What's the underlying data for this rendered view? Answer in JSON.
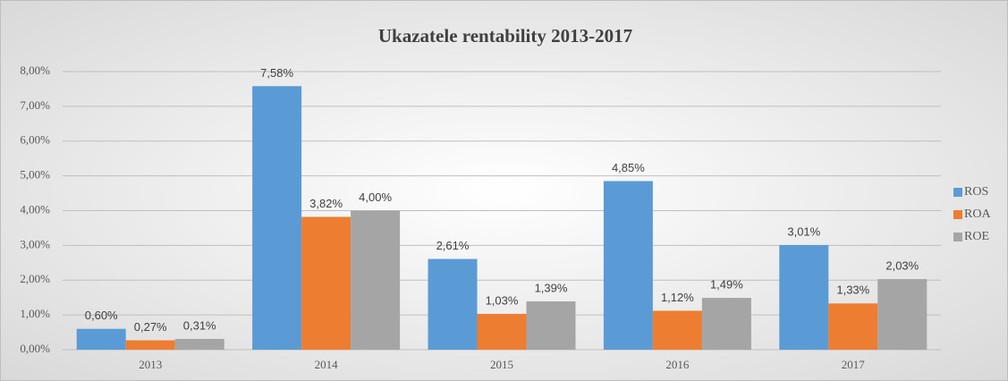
{
  "chart_data": {
    "type": "bar",
    "title": "Ukazatele rentability 2013-2017",
    "categories": [
      "2013",
      "2014",
      "2015",
      "2016",
      "2017"
    ],
    "series": [
      {
        "name": "ROS",
        "color": "#5b9bd5",
        "values": [
          0.6,
          7.58,
          2.61,
          4.85,
          3.01
        ],
        "value_labels": [
          "0,60%",
          "7,58%",
          "2,61%",
          "4,85%",
          "3,01%"
        ]
      },
      {
        "name": "ROA",
        "color": "#ed7d31",
        "values": [
          0.27,
          3.82,
          1.03,
          1.12,
          1.33
        ],
        "value_labels": [
          "0,27%",
          "3,82%",
          "1,03%",
          "1,12%",
          "1,33%"
        ]
      },
      {
        "name": "ROE",
        "color": "#a5a5a5",
        "values": [
          0.31,
          4.0,
          1.39,
          1.49,
          2.03
        ],
        "value_labels": [
          "0,31%",
          "4,00%",
          "1,39%",
          "1,49%",
          "2,03%"
        ]
      }
    ],
    "ylim": [
      0,
      8
    ],
    "yticks": [
      {
        "value": 0,
        "label": "0,00%"
      },
      {
        "value": 1,
        "label": "1,00%"
      },
      {
        "value": 2,
        "label": "2,00%"
      },
      {
        "value": 3,
        "label": "3,00%"
      },
      {
        "value": 4,
        "label": "4,00%"
      },
      {
        "value": 5,
        "label": "5,00%"
      },
      {
        "value": 6,
        "label": "6,00%"
      },
      {
        "value": 7,
        "label": "7,00%"
      },
      {
        "value": 8,
        "label": "8,00%"
      }
    ],
    "grid": true,
    "legend": "right"
  }
}
